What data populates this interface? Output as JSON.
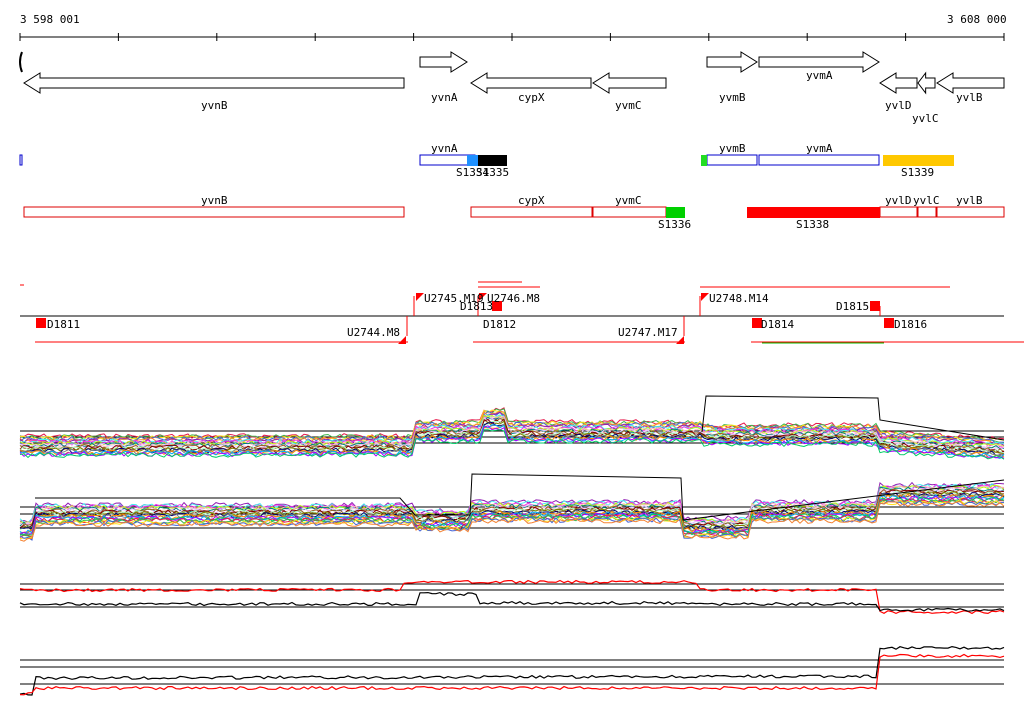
{
  "ruler": {
    "start_label": "3 598 001",
    "end_label": "3 608 000"
  },
  "genes_top": [
    {
      "name": "yvnB",
      "strand": "-"
    },
    {
      "name": "yvnA",
      "strand": "+"
    },
    {
      "name": "cypX",
      "strand": "-"
    },
    {
      "name": "yvmC",
      "strand": "-"
    },
    {
      "name": "yvmB",
      "strand": "+"
    },
    {
      "name": "yvmA",
      "strand": "+"
    },
    {
      "name": "yvlD",
      "strand": "-"
    },
    {
      "name": "yvlC",
      "strand": "-"
    },
    {
      "name": "yvlB",
      "strand": "-"
    }
  ],
  "forward_track": {
    "genes": [
      "yvnA",
      "yvmB",
      "yvmA"
    ],
    "segments": [
      {
        "label": "S1334",
        "color": "#1e90ff"
      },
      {
        "label": "S1335",
        "color": "#000000"
      },
      {
        "label": "S1339",
        "color": "#ffc800"
      }
    ]
  },
  "reverse_track": {
    "genes": [
      "yvnB",
      "cypX",
      "yvmC",
      "yvlD",
      "yvlC",
      "yvlB"
    ],
    "segments": [
      {
        "label": "S1336",
        "color": "#00d000"
      },
      {
        "label": "S1338",
        "color": "#ff0000"
      }
    ]
  },
  "features": [
    {
      "label": "U2745.M19"
    },
    {
      "label": "U2746.M8"
    },
    {
      "label": "D1813"
    },
    {
      "label": "U2748.M14"
    },
    {
      "label": "D1815"
    },
    {
      "label": "D1811"
    },
    {
      "label": "D1812"
    },
    {
      "label": "D1814"
    },
    {
      "label": "D1816"
    },
    {
      "label": "U2744.M8"
    },
    {
      "label": "U2747.M17"
    }
  ],
  "colors": {
    "gene_outline": "#000000",
    "forward_outline": "#0000cc",
    "reverse_outline": "#dd0000",
    "feature_red": "#ff0000",
    "profile_black": "#000000",
    "profile_red": "#ff0000"
  }
}
